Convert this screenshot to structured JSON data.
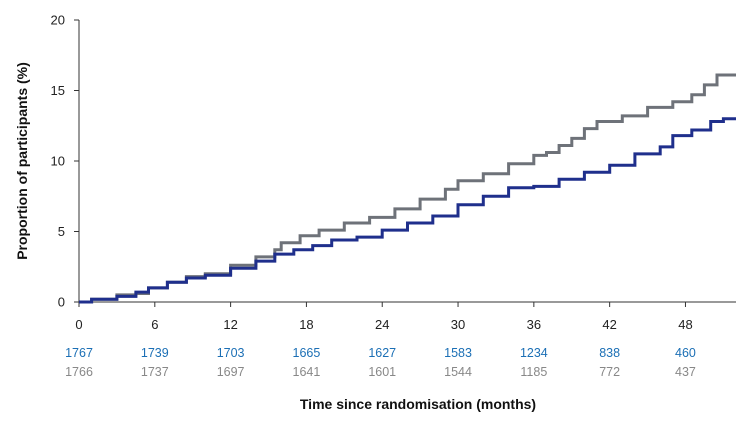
{
  "chart_data": {
    "type": "line",
    "xlabel": "Time since randomisation (months)",
    "ylabel": "Proportion of participants (%)",
    "xlim": [
      0,
      52
    ],
    "ylim": [
      0,
      20
    ],
    "x_ticks": [
      0,
      6,
      12,
      18,
      24,
      30,
      36,
      42,
      48
    ],
    "y_ticks": [
      0,
      5,
      10,
      15,
      20
    ],
    "grid": false,
    "legend": "none",
    "series": [
      {
        "color": "#1f2f8c",
        "points": [
          [
            0,
            0
          ],
          [
            1,
            0.2
          ],
          [
            3,
            0.4
          ],
          [
            4.5,
            0.7
          ],
          [
            5.5,
            1.0
          ],
          [
            7,
            1.4
          ],
          [
            8.5,
            1.7
          ],
          [
            10,
            1.9
          ],
          [
            12,
            2.4
          ],
          [
            14,
            2.9
          ],
          [
            15.5,
            3.4
          ],
          [
            17,
            3.7
          ],
          [
            18.5,
            4.0
          ],
          [
            20,
            4.4
          ],
          [
            22,
            4.6
          ],
          [
            24,
            5.1
          ],
          [
            26,
            5.6
          ],
          [
            28,
            6.1
          ],
          [
            30,
            6.9
          ],
          [
            32,
            7.5
          ],
          [
            34,
            8.1
          ],
          [
            36,
            8.2
          ],
          [
            38,
            8.7
          ],
          [
            40,
            9.2
          ],
          [
            42,
            9.7
          ],
          [
            44,
            10.5
          ],
          [
            46,
            11.0
          ],
          [
            47,
            11.8
          ],
          [
            48.5,
            12.2
          ],
          [
            50,
            12.8
          ],
          [
            51,
            13.0
          ],
          [
            52,
            13.0
          ]
        ]
      },
      {
        "color": "#6e7279",
        "points": [
          [
            0,
            0
          ],
          [
            1,
            0.2
          ],
          [
            3,
            0.5
          ],
          [
            4.5,
            0.6
          ],
          [
            5.5,
            1.0
          ],
          [
            7,
            1.4
          ],
          [
            8.5,
            1.8
          ],
          [
            10,
            2.0
          ],
          [
            12,
            2.6
          ],
          [
            14,
            3.2
          ],
          [
            15.5,
            3.7
          ],
          [
            16,
            4.2
          ],
          [
            17.5,
            4.7
          ],
          [
            19,
            5.1
          ],
          [
            21,
            5.6
          ],
          [
            23,
            6.0
          ],
          [
            25,
            6.6
          ],
          [
            27,
            7.3
          ],
          [
            29,
            8.0
          ],
          [
            30,
            8.6
          ],
          [
            32,
            9.1
          ],
          [
            34,
            9.8
          ],
          [
            36,
            10.4
          ],
          [
            37,
            10.6
          ],
          [
            38,
            11.1
          ],
          [
            39,
            11.6
          ],
          [
            40,
            12.3
          ],
          [
            41,
            12.8
          ],
          [
            43,
            13.2
          ],
          [
            45,
            13.8
          ],
          [
            47,
            14.2
          ],
          [
            48.5,
            14.7
          ],
          [
            49.5,
            15.4
          ],
          [
            50.5,
            16.1
          ],
          [
            52,
            16.1
          ]
        ]
      }
    ],
    "numbers_at_risk": [
      {
        "color": "#1b6fb5",
        "values": [
          "1767",
          "1739",
          "1703",
          "1665",
          "1627",
          "1583",
          "1234",
          "838",
          "460"
        ]
      },
      {
        "color": "#888888",
        "values": [
          "1766",
          "1737",
          "1697",
          "1641",
          "1601",
          "1544",
          "1185",
          "772",
          "437"
        ]
      }
    ]
  }
}
